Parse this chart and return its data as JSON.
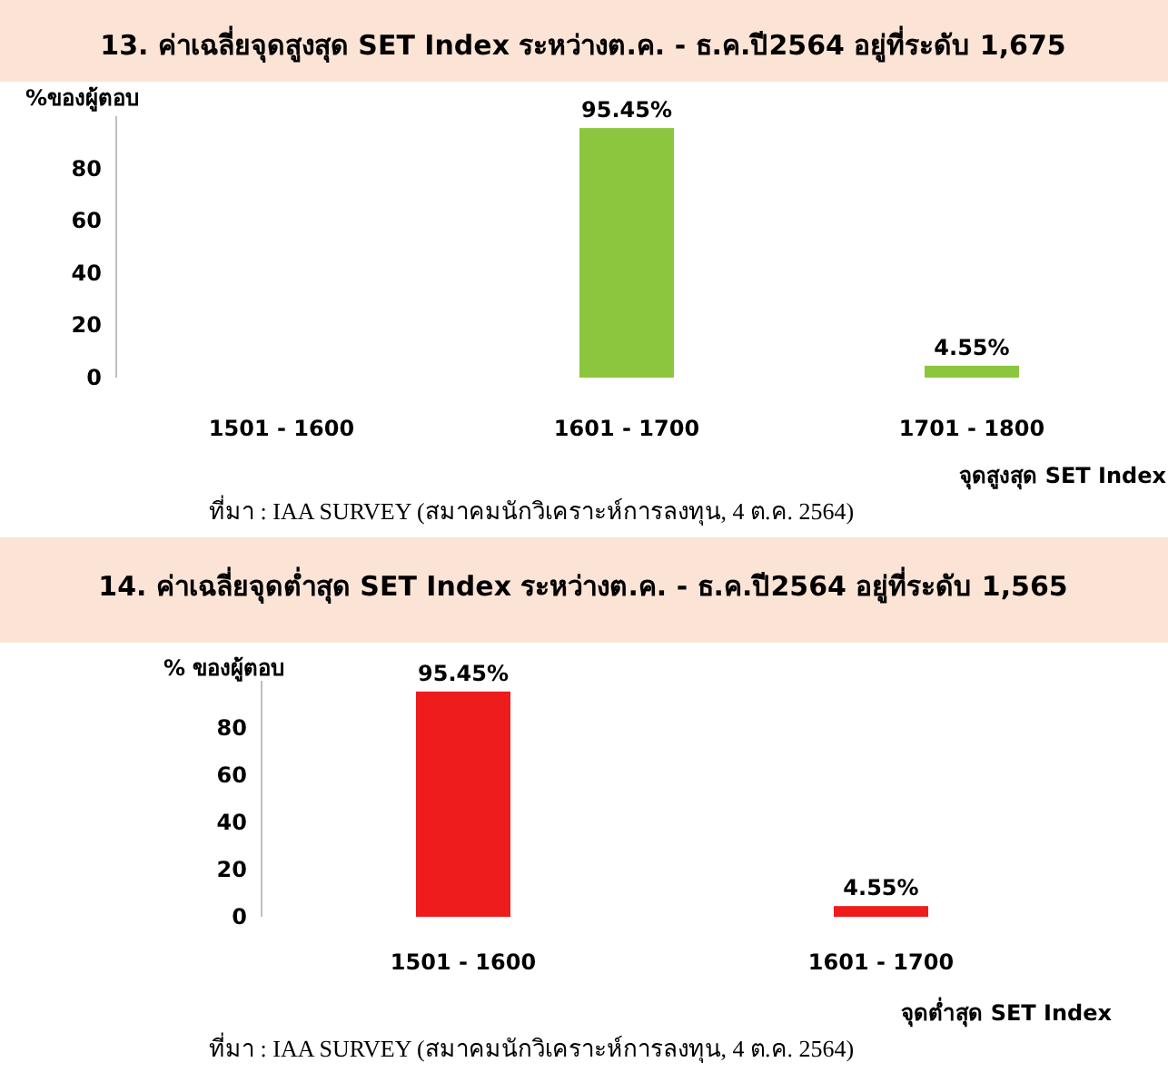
{
  "chart_data": [
    {
      "type": "bar",
      "title": "13. ค่าเฉลี่ยจุดสูงสุด SET Index ระหว่างต.ค. - ธ.ค.ปี2564 อยู่ที่ระดับ 1,675",
      "ylabel": "%ของผู้ตอบ",
      "xlabel": "จุดสูงสุด SET Index",
      "categories": [
        "1501 - 1600",
        "1601 - 1700",
        "1701 - 1800"
      ],
      "values": [
        0,
        95.45,
        4.55
      ],
      "value_labels": [
        null,
        "95.45%",
        "4.55%"
      ],
      "color": "#8cc63e",
      "ylim": [
        0,
        100
      ],
      "yticks": [
        0,
        20,
        40,
        60,
        80
      ],
      "annotations": [
        "ที่มา : IAA SURVEY (สมาคมนักวิเคราะห์การลงทุน, 4 ต.ค. 2564)"
      ]
    },
    {
      "type": "bar",
      "title": "14. ค่าเฉลี่ยจุดต่ำสุด SET Index ระหว่างต.ค. - ธ.ค.ปี2564 อยู่ที่ระดับ 1,565",
      "ylabel": "% ของผู้ตอบ",
      "xlabel": "จุดต่ำสุด SET Index",
      "categories": [
        "1501 - 1600",
        "1601 - 1700"
      ],
      "values": [
        95.45,
        4.55
      ],
      "value_labels": [
        "95.45%",
        "4.55%"
      ],
      "color": "#ee1c1c",
      "ylim": [
        0,
        100
      ],
      "yticks": [
        0,
        20,
        40,
        60,
        80
      ],
      "annotations": [
        "ที่มา : IAA SURVEY (สมาคมนักวิเคราะห์การลงทุน, 4 ต.ค. 2564)"
      ]
    }
  ]
}
